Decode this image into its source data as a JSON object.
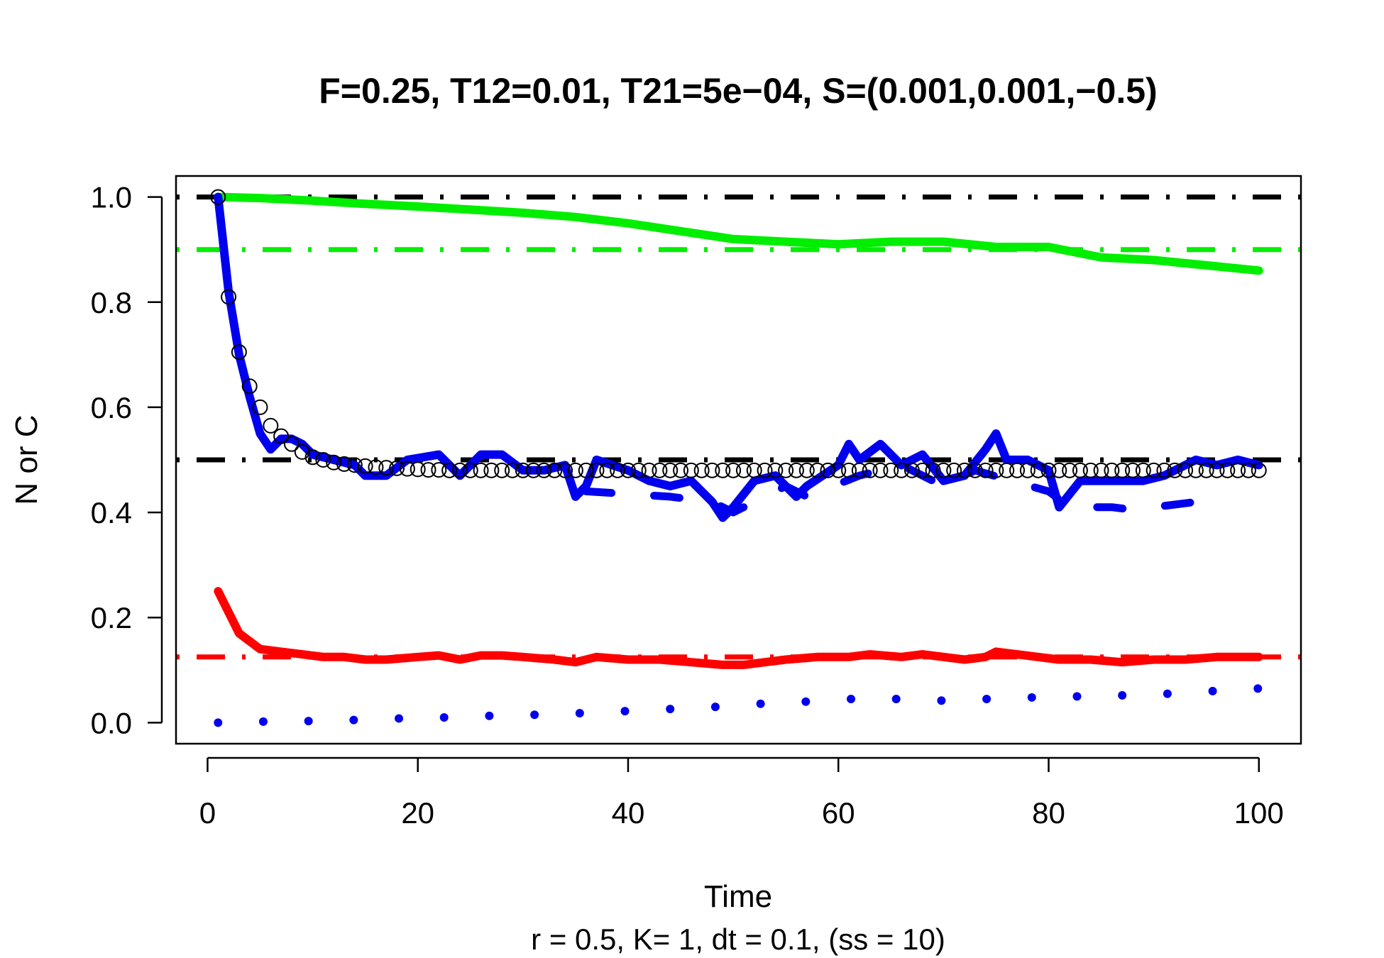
{
  "chart_data": {
    "type": "line",
    "title": "F=0.25, T12=0.01, T21=5e−04, S=(0.001,0.001,−0.5)",
    "xlabel": "Time",
    "ylabel": "N or C",
    "subtitle": "r = 0.5, K= 1, dt = 0.1, (ss = 10)",
    "xlim": [
      -3,
      104
    ],
    "ylim": [
      -0.04,
      1.04
    ],
    "x_ticks": [
      0,
      20,
      40,
      60,
      80,
      100
    ],
    "x_tick_labels": [
      "0",
      "20",
      "40",
      "60",
      "80",
      "100"
    ],
    "y_ticks": [
      0.0,
      0.2,
      0.4,
      0.6,
      0.8,
      1.0
    ],
    "y_tick_labels": [
      "0.0",
      "0.2",
      "0.4",
      "0.6",
      "0.8",
      "1.0"
    ],
    "grid": false,
    "reference_lines": [
      {
        "y": 1.0,
        "color": "#000000",
        "style": "dotdash"
      },
      {
        "y": 0.9,
        "color": "#00ee00",
        "style": "dotdash"
      },
      {
        "y": 0.5,
        "color": "#000000",
        "style": "dotdash"
      },
      {
        "y": 0.125,
        "color": "#ff0000",
        "style": "dotdash"
      }
    ],
    "series": [
      {
        "color": "#00ee00",
        "style": "solid",
        "x": [
          1,
          5,
          10,
          15,
          20,
          25,
          30,
          35,
          40,
          45,
          50,
          55,
          60,
          65,
          70,
          75,
          80,
          85,
          90,
          95,
          100
        ],
        "y": [
          1.0,
          0.998,
          0.993,
          0.987,
          0.982,
          0.976,
          0.97,
          0.962,
          0.95,
          0.935,
          0.92,
          0.915,
          0.91,
          0.915,
          0.915,
          0.905,
          0.905,
          0.885,
          0.88,
          0.87,
          0.86
        ]
      },
      {
        "color": "#0000ee",
        "style": "solid",
        "x": [
          1,
          2,
          3,
          4,
          5,
          6,
          7,
          8,
          9,
          10,
          12,
          14,
          15,
          17,
          19,
          22,
          24,
          26,
          28,
          30,
          32,
          34,
          35,
          36,
          37,
          40,
          42,
          44,
          46,
          48,
          49,
          50,
          52,
          54,
          56,
          57,
          60,
          61,
          62,
          64,
          66,
          68,
          70,
          72,
          74,
          75,
          76,
          78,
          80,
          81,
          83,
          85,
          87,
          89,
          91,
          94,
          96,
          98,
          100
        ],
        "y": [
          1.0,
          0.82,
          0.7,
          0.62,
          0.55,
          0.52,
          0.54,
          0.54,
          0.53,
          0.51,
          0.5,
          0.49,
          0.47,
          0.47,
          0.5,
          0.51,
          0.47,
          0.51,
          0.51,
          0.48,
          0.48,
          0.49,
          0.43,
          0.45,
          0.5,
          0.48,
          0.46,
          0.45,
          0.46,
          0.42,
          0.39,
          0.41,
          0.46,
          0.47,
          0.43,
          0.45,
          0.49,
          0.53,
          0.5,
          0.53,
          0.49,
          0.51,
          0.46,
          0.47,
          0.52,
          0.55,
          0.5,
          0.5,
          0.48,
          0.41,
          0.46,
          0.46,
          0.46,
          0.46,
          0.47,
          0.5,
          0.49,
          0.5,
          0.49
        ]
      },
      {
        "color": "#0000ee",
        "style": "dashed",
        "x": [
          36,
          44,
          48,
          50,
          55,
          57,
          62,
          66,
          68,
          70,
          73,
          80,
          82,
          86,
          88,
          90,
          94,
          97
        ],
        "y": [
          0.44,
          0.43,
          0.42,
          0.4,
          0.45,
          0.43,
          0.47,
          0.49,
          0.47,
          0.45,
          0.48,
          0.44,
          0.41,
          0.41,
          0.405,
          0.41,
          0.42,
          0.44
        ]
      },
      {
        "color": "#ff0000",
        "style": "solid",
        "x": [
          1,
          3,
          5,
          7,
          9,
          11,
          13,
          15,
          17,
          20,
          22,
          24,
          26,
          28,
          30,
          33,
          35,
          37,
          40,
          43,
          46,
          49,
          51,
          53,
          55,
          58,
          61,
          63,
          66,
          68,
          70,
          72,
          74,
          75,
          77,
          79,
          81,
          84,
          87,
          90,
          93,
          96,
          98,
          100
        ],
        "y": [
          0.25,
          0.17,
          0.14,
          0.135,
          0.13,
          0.125,
          0.125,
          0.12,
          0.12,
          0.125,
          0.128,
          0.12,
          0.128,
          0.128,
          0.125,
          0.12,
          0.115,
          0.125,
          0.12,
          0.12,
          0.115,
          0.11,
          0.11,
          0.115,
          0.12,
          0.125,
          0.125,
          0.13,
          0.125,
          0.13,
          0.125,
          0.12,
          0.125,
          0.135,
          0.13,
          0.125,
          0.12,
          0.12,
          0.115,
          0.12,
          0.12,
          0.125,
          0.125,
          0.125
        ]
      },
      {
        "color": "#0000ee",
        "style": "points",
        "x": [
          1,
          5.3,
          9.6,
          13.9,
          18.2,
          22.5,
          26.8,
          31.1,
          35.4,
          39.7,
          44,
          48.3,
          52.6,
          56.9,
          61.2,
          65.5,
          69.8,
          74.1,
          78.4,
          82.7,
          87,
          91.3,
          95.6,
          99.9
        ],
        "y": [
          0.0,
          0.002,
          0.003,
          0.005,
          0.008,
          0.01,
          0.013,
          0.015,
          0.018,
          0.022,
          0.026,
          0.03,
          0.036,
          0.04,
          0.045,
          0.045,
          0.042,
          0.045,
          0.048,
          0.05,
          0.052,
          0.055,
          0.06,
          0.065
        ]
      },
      {
        "color": "#000000",
        "style": "open-circles",
        "x": [
          1,
          2,
          3,
          4,
          5,
          6,
          7,
          8,
          9,
          10,
          11,
          12,
          13,
          14,
          15,
          16,
          17,
          18,
          19,
          20,
          21,
          22,
          23,
          24,
          25,
          26,
          27,
          28,
          29,
          30,
          31,
          32,
          33,
          34,
          35,
          36,
          37,
          38,
          39,
          40,
          41,
          42,
          43,
          44,
          45,
          46,
          47,
          48,
          49,
          50,
          51,
          52,
          53,
          54,
          55,
          56,
          57,
          58,
          59,
          60,
          61,
          62,
          63,
          64,
          65,
          66,
          67,
          68,
          69,
          70,
          71,
          72,
          73,
          74,
          75,
          76,
          77,
          78,
          79,
          80,
          81,
          82,
          83,
          84,
          85,
          86,
          87,
          88,
          89,
          90,
          91,
          92,
          93,
          94,
          95,
          96,
          97,
          98,
          99,
          100
        ],
        "y": [
          1.0,
          0.81,
          0.705,
          0.64,
          0.6,
          0.565,
          0.545,
          0.53,
          0.515,
          0.505,
          0.5,
          0.495,
          0.492,
          0.49,
          0.488,
          0.486,
          0.485,
          0.484,
          0.483,
          0.482,
          0.481,
          0.481,
          0.48,
          0.48,
          0.48,
          0.48,
          0.48,
          0.48,
          0.48,
          0.48,
          0.48,
          0.48,
          0.48,
          0.48,
          0.48,
          0.48,
          0.48,
          0.48,
          0.48,
          0.48,
          0.48,
          0.48,
          0.48,
          0.48,
          0.48,
          0.48,
          0.48,
          0.48,
          0.48,
          0.48,
          0.48,
          0.48,
          0.48,
          0.48,
          0.48,
          0.48,
          0.48,
          0.48,
          0.48,
          0.48,
          0.48,
          0.48,
          0.48,
          0.48,
          0.48,
          0.48,
          0.48,
          0.48,
          0.48,
          0.48,
          0.48,
          0.48,
          0.48,
          0.48,
          0.48,
          0.48,
          0.48,
          0.48,
          0.48,
          0.48,
          0.48,
          0.48,
          0.48,
          0.48,
          0.48,
          0.48,
          0.48,
          0.48,
          0.48,
          0.48,
          0.48,
          0.48,
          0.48,
          0.48,
          0.48,
          0.48,
          0.48,
          0.48,
          0.48,
          0.48
        ]
      }
    ]
  }
}
